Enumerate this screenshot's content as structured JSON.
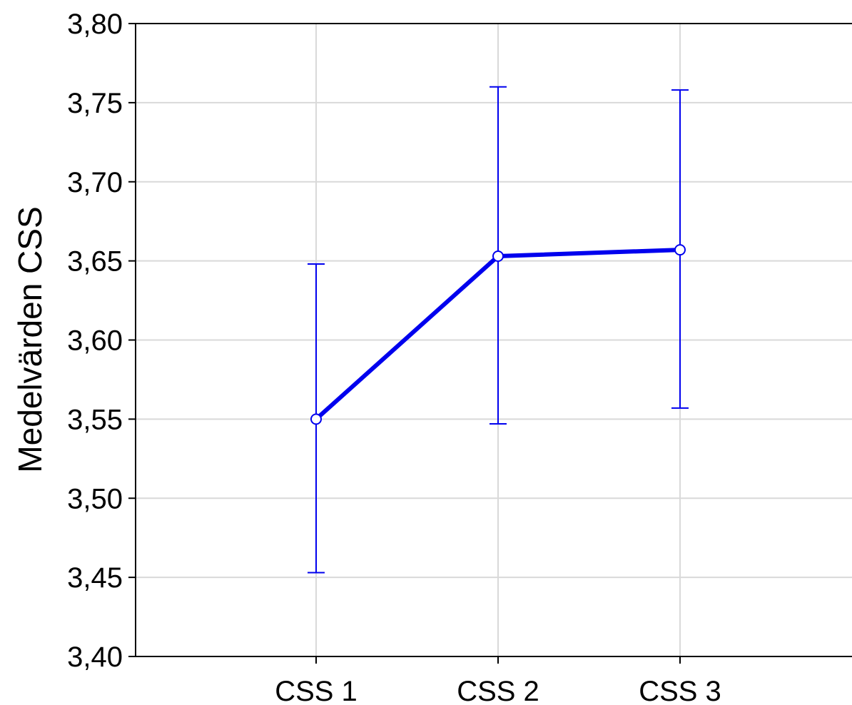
{
  "chart_data": {
    "type": "line",
    "title": "",
    "xlabel": "",
    "ylabel": "Medelvärden CSS",
    "categories": [
      "CSS 1",
      "CSS 2",
      "CSS 3"
    ],
    "series": [
      {
        "values": [
          3.55,
          3.653,
          3.657
        ],
        "error_low": [
          3.453,
          3.547,
          3.557
        ],
        "error_high": [
          3.648,
          3.76,
          3.758
        ],
        "color": "#0000ee"
      }
    ],
    "ylim": [
      3.4,
      3.8
    ],
    "yticks": [
      3.4,
      3.45,
      3.5,
      3.55,
      3.6,
      3.65,
      3.7,
      3.75,
      3.8
    ],
    "ytick_labels": [
      "3,40",
      "3,45",
      "3,50",
      "3,55",
      "3,60",
      "3,65",
      "3,70",
      "3,75",
      "3,80"
    ],
    "grid": true,
    "grid_color": "#d9d9d9",
    "legend": "none"
  }
}
